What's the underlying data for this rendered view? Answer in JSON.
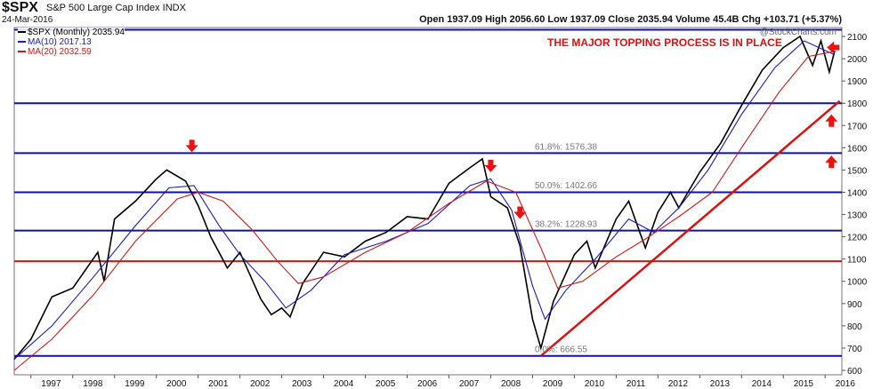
{
  "header": {
    "symbol": "$SPX",
    "description": "S&P 500 Large Cap Index INDX",
    "date": "24-Mar-2016",
    "ohlc": "Open 1937.09  High 2056.60  Low 1937.09  Close 2035.94  Volume 45.4B  Chg +103.71 (+5.37%)",
    "credit": "@StockCharts.com"
  },
  "legend": [
    {
      "label": "$SPX (Monthly) 2035.94",
      "color": "#000000"
    },
    {
      "label": "MA(10) 2017.13",
      "color": "#1a1acc"
    },
    {
      "label": "MA(20) 2032.59",
      "color": "#cc1a1a"
    }
  ],
  "chart_data": {
    "type": "line",
    "title": "THE MAJOR TOPPING PROCESS IS IN PLACE",
    "ylim": [
      580,
      2140
    ],
    "xlim": [
      1996.6,
      2016.4
    ],
    "y_ticks": [
      600,
      700,
      800,
      900,
      1000,
      1100,
      1200,
      1300,
      1400,
      1500,
      1600,
      1700,
      1800,
      1900,
      2000,
      2100
    ],
    "x_ticks": [
      "1997",
      "1998",
      "1999",
      "2000",
      "2001",
      "2002",
      "2003",
      "2004",
      "2005",
      "2006",
      "2007",
      "2008",
      "2009",
      "2010",
      "2011",
      "2012",
      "2013",
      "2014",
      "2015",
      "2016"
    ],
    "grid": false,
    "series": [
      {
        "name": "$SPX (Monthly)",
        "color": "#000000",
        "x": [
          1996.6,
          1997.0,
          1997.5,
          1998.0,
          1998.6,
          1998.75,
          1999.0,
          1999.5,
          2000.0,
          2000.25,
          2000.7,
          2001.0,
          2001.3,
          2001.7,
          2002.0,
          2002.5,
          2002.75,
          2003.0,
          2003.2,
          2003.5,
          2004.0,
          2004.5,
          2005.0,
          2005.5,
          2006.0,
          2006.5,
          2007.0,
          2007.5,
          2007.8,
          2008.0,
          2008.4,
          2008.7,
          2009.0,
          2009.2,
          2009.5,
          2010.0,
          2010.3,
          2010.5,
          2011.0,
          2011.3,
          2011.7,
          2012.0,
          2012.3,
          2012.5,
          2013.0,
          2013.5,
          2014.0,
          2014.5,
          2015.0,
          2015.4,
          2015.7,
          2015.9,
          2016.1,
          2016.23
        ],
        "values": [
          650,
          740,
          930,
          970,
          1130,
          1000,
          1280,
          1360,
          1460,
          1500,
          1450,
          1340,
          1200,
          1060,
          1130,
          920,
          850,
          880,
          840,
          990,
          1130,
          1110,
          1180,
          1220,
          1290,
          1280,
          1440,
          1510,
          1550,
          1380,
          1330,
          1160,
          830,
          700,
          910,
          1120,
          1180,
          1060,
          1280,
          1360,
          1150,
          1310,
          1400,
          1330,
          1490,
          1620,
          1790,
          1950,
          2050,
          2100,
          1970,
          2080,
          1940,
          2036
        ]
      },
      {
        "name": "MA(10)",
        "color": "#1a1acc",
        "x": [
          1996.6,
          1997.5,
          1998.5,
          1999.5,
          2000.3,
          2000.9,
          2001.5,
          2002.0,
          2002.6,
          2003.1,
          2003.7,
          2004.5,
          2005.5,
          2006.5,
          2007.5,
          2008.0,
          2008.5,
          2009.0,
          2009.3,
          2009.8,
          2010.5,
          2011.3,
          2011.9,
          2012.5,
          2013.2,
          2014.0,
          2014.8,
          2015.5,
          2016.23
        ],
        "values": [
          650,
          800,
          1020,
          1250,
          1420,
          1430,
          1250,
          1120,
          1000,
          880,
          960,
          1120,
          1180,
          1260,
          1430,
          1460,
          1320,
          980,
          830,
          960,
          1100,
          1280,
          1220,
          1330,
          1500,
          1750,
          1960,
          2080,
          2017
        ]
      },
      {
        "name": "MA(20)",
        "color": "#cc1a1a",
        "x": [
          1996.6,
          1997.5,
          1998.5,
          1999.5,
          2000.5,
          2001.0,
          2001.6,
          2002.3,
          2002.9,
          2003.4,
          2004.0,
          2005.0,
          2006.0,
          2007.0,
          2007.9,
          2008.6,
          2009.2,
          2009.6,
          2010.2,
          2011.0,
          2011.7,
          2012.5,
          2013.3,
          2014.0,
          2014.9,
          2015.6,
          2016.23
        ],
        "values": [
          600,
          740,
          940,
          1180,
          1370,
          1400,
          1360,
          1230,
          1090,
          990,
          1020,
          1130,
          1220,
          1350,
          1450,
          1400,
          1150,
          970,
          1000,
          1110,
          1190,
          1290,
          1400,
          1600,
          1850,
          2010,
          2033
        ]
      }
    ],
    "horizontal_lines": [
      {
        "y": 2130,
        "color": "#1010aa"
      },
      {
        "y": 1800,
        "color": "#1010aa"
      },
      {
        "y": 1576,
        "color": "#1010aa"
      },
      {
        "y": 1400,
        "color": "#1010aa"
      },
      {
        "y": 1228,
        "color": "#1010aa"
      },
      {
        "y": 1090,
        "color": "#dd1111"
      },
      {
        "y": 665,
        "color": "#1010aa"
      }
    ],
    "fibonacci": [
      {
        "label": "61.8%: 1576.38",
        "y": 1576.38
      },
      {
        "label": "50.0%: 1402.66",
        "y": 1402.66
      },
      {
        "label": "38.2%: 1228.93",
        "y": 1228.93
      },
      {
        "label": "0.0%: 666.55",
        "y": 666.55
      }
    ],
    "trendline": {
      "x": [
        2009.2,
        2016.35
      ],
      "y": [
        665,
        1810
      ],
      "color": "#dd1111"
    },
    "arrows": [
      {
        "x": 2000.85,
        "y": 1600,
        "direction": "down"
      },
      {
        "x": 2008.0,
        "y": 1510,
        "direction": "down"
      },
      {
        "x": 2008.7,
        "y": 1300,
        "direction": "down"
      },
      {
        "x": 2016.15,
        "y": 2050,
        "direction": "left"
      },
      {
        "x": 2016.15,
        "y": 1730,
        "direction": "up"
      },
      {
        "x": 2016.15,
        "y": 1545,
        "direction": "up"
      }
    ]
  }
}
